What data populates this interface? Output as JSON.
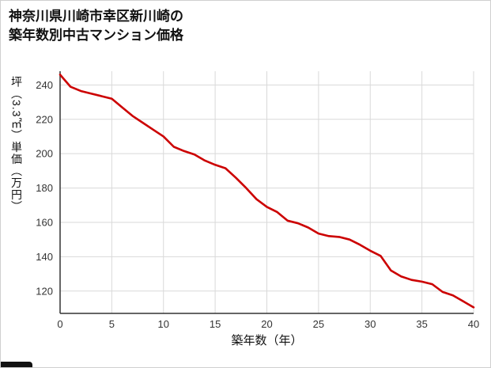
{
  "title": {
    "line1": "神奈川県川崎市幸区新川崎の",
    "line2": "築年数別中古マンション価格"
  },
  "chart_data": {
    "type": "line",
    "title": "神奈川県川崎市幸区新川崎の築年数別中古マンション価格",
    "xlabel": "築年数（年）",
    "ylabel": "坪（3.3㎡）単価（万円）",
    "x": [
      0,
      1,
      2,
      3,
      4,
      5,
      6,
      7,
      8,
      9,
      10,
      11,
      12,
      13,
      14,
      15,
      16,
      17,
      18,
      19,
      20,
      21,
      22,
      23,
      24,
      25,
      26,
      27,
      28,
      29,
      30,
      31,
      32,
      33,
      34,
      35,
      36,
      37,
      38,
      39,
      40
    ],
    "y": [
      246,
      239,
      236.5,
      235,
      233.5,
      232,
      227,
      222,
      218,
      214,
      210,
      204,
      201.5,
      199.5,
      196,
      193.5,
      191.5,
      186,
      180,
      173.5,
      169,
      166,
      161,
      159.5,
      157,
      153.5,
      152,
      151.5,
      150,
      147,
      143.5,
      140.5,
      132,
      128.5,
      126.5,
      125.5,
      124,
      119.5,
      117.5,
      114,
      110.5
    ],
    "xlim": [
      0,
      40
    ],
    "ylim": [
      107,
      248
    ],
    "xticks": [
      0,
      5,
      10,
      15,
      20,
      25,
      30,
      35,
      40
    ],
    "yticks": [
      120,
      140,
      160,
      180,
      200,
      220,
      240
    ],
    "grid": true,
    "legend": "none",
    "line_color": "#cc0000",
    "grid_color": "#d9d9d9",
    "axis_color": "#333333",
    "tick_color": "#333333"
  }
}
